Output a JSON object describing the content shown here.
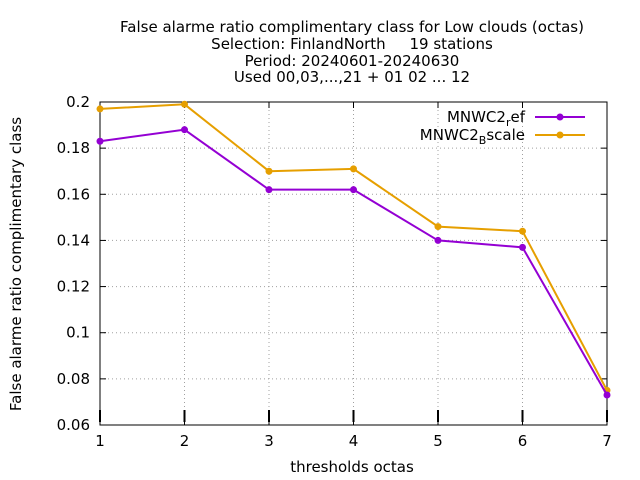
{
  "chart_data": {
    "type": "line",
    "title_lines": [
      "False alarme ratio complimentary class  for Low clouds (octas)",
      "Selection: FinlandNorth     19 stations",
      "Period: 20240601-20240630",
      "Used 00,03,...,21 + 01 02 ... 12"
    ],
    "xlabel": "thresholds octas",
    "ylabel": "False alarme ratio complimentary class",
    "x": [
      1,
      2,
      3,
      4,
      5,
      6,
      7
    ],
    "xlim": [
      1,
      7
    ],
    "ylim": [
      0.06,
      0.2
    ],
    "yticks": [
      0.06,
      0.08,
      0.1,
      0.12,
      0.14,
      0.16,
      0.18,
      0.2
    ],
    "ytick_labels": [
      "0.06",
      "0.08",
      "0.1",
      "0.12",
      "0.14",
      "0.16",
      "0.18",
      "0.2"
    ],
    "xtick_labels": [
      "1",
      "2",
      "3",
      "4",
      "5",
      "6",
      "7"
    ],
    "grid": true,
    "legend_position": "top-right",
    "series": [
      {
        "legend_base": "MNWC2",
        "legend_sub": "r",
        "legend_rest": "ef",
        "color": "#9400d3",
        "values": [
          0.183,
          0.188,
          0.162,
          0.162,
          0.14,
          0.137,
          0.073
        ]
      },
      {
        "legend_base": "MNWC2",
        "legend_sub": "B",
        "legend_rest": "scale",
        "color": "#e69f00",
        "values": [
          0.197,
          0.199,
          0.17,
          0.171,
          0.146,
          0.144,
          0.075
        ]
      }
    ]
  }
}
